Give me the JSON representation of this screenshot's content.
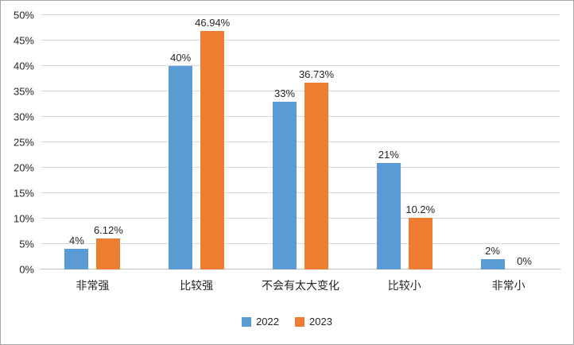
{
  "chart_data": {
    "type": "bar",
    "title": "",
    "xlabel": "",
    "ylabel": "",
    "categories": [
      "非常强",
      "比较强",
      "不会有太大变化",
      "比较小",
      "非常小"
    ],
    "series": [
      {
        "name": "2022",
        "color": "#5b9bd5",
        "values": [
          4,
          40,
          33,
          21,
          2
        ],
        "labels": [
          "4%",
          "40%",
          "33%",
          "21%",
          "2%"
        ]
      },
      {
        "name": "2023",
        "color": "#ed7d31",
        "values": [
          6.12,
          46.94,
          36.73,
          10.2,
          0
        ],
        "labels": [
          "6.12%",
          "46.94%",
          "36.73%",
          "10.2%",
          "0%"
        ]
      }
    ],
    "ylim": [
      0,
      50
    ],
    "ytick_step": 5,
    "yticks": [
      "0%",
      "5%",
      "10%",
      "15%",
      "20%",
      "25%",
      "30%",
      "35%",
      "40%",
      "45%",
      "50%"
    ],
    "grid": true,
    "legend_position": "bottom",
    "colors": {
      "gridline": "#d9d9d9",
      "axis_line": "#bfbfbf",
      "text": "#262626",
      "border": "#a6a6a6",
      "background": "#ffffff"
    }
  }
}
